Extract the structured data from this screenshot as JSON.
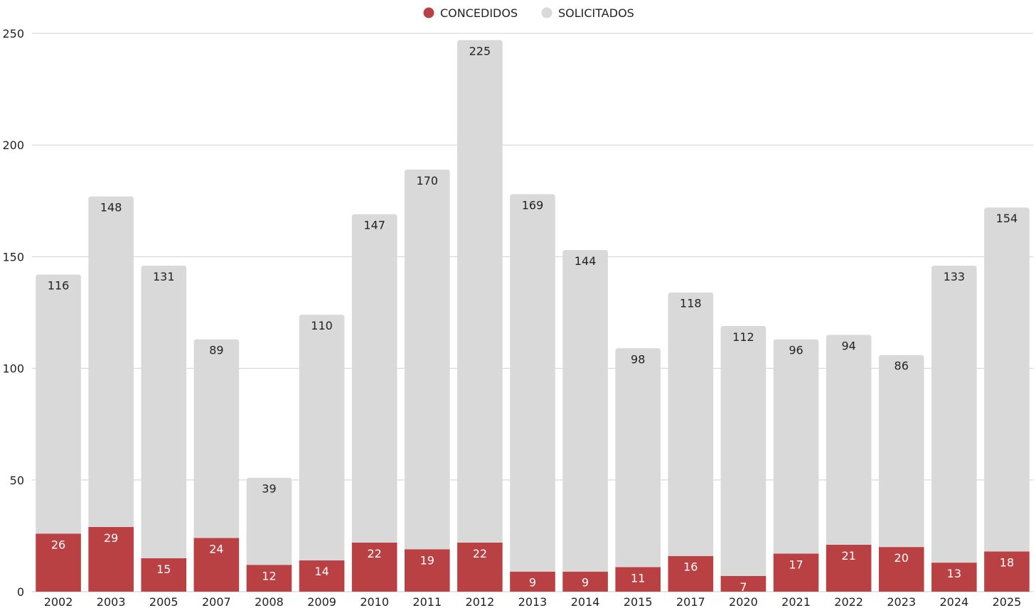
{
  "chart_data": {
    "type": "bar",
    "stacked": true,
    "categories": [
      "2002",
      "2003",
      "2005",
      "2007",
      "2008",
      "2009",
      "2010",
      "2011",
      "2012",
      "2013",
      "2014",
      "2015",
      "2017",
      "2020",
      "2021",
      "2022",
      "2023",
      "2024",
      "2025"
    ],
    "series": [
      {
        "name": "CONCEDIDOS",
        "color": "#b94143",
        "label_color": "#ffffff",
        "values": [
          26,
          29,
          15,
          24,
          12,
          14,
          22,
          19,
          22,
          9,
          9,
          11,
          16,
          7,
          17,
          21,
          20,
          13,
          18
        ]
      },
      {
        "name": "SOLICITADOS",
        "color": "#d9d9d9",
        "label_color": "#222222",
        "values": [
          116,
          148,
          131,
          89,
          39,
          110,
          147,
          170,
          225,
          169,
          144,
          98,
          118,
          112,
          96,
          94,
          86,
          133,
          154
        ]
      }
    ],
    "yticks": [
      0,
      50,
      100,
      150,
      200,
      250
    ],
    "ylim": [
      0,
      250
    ],
    "grid": true,
    "legend_position": "top-center"
  }
}
